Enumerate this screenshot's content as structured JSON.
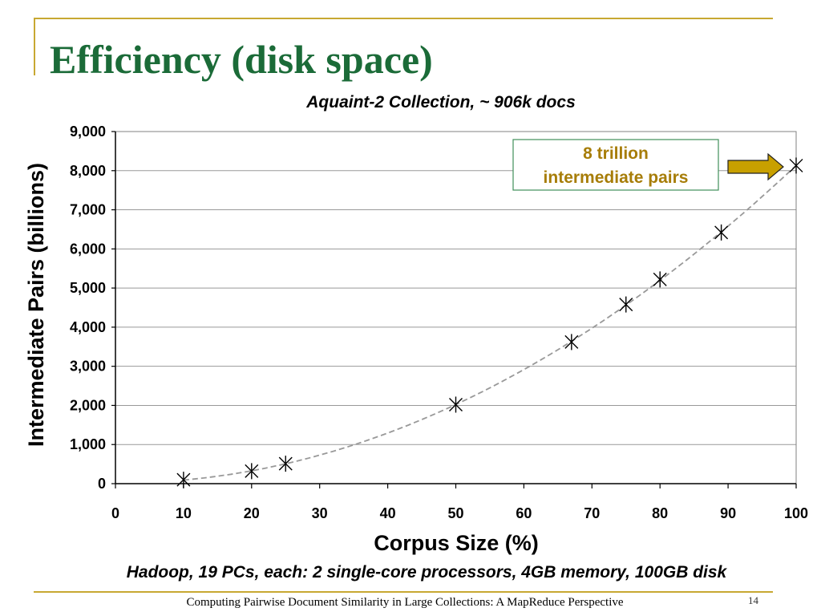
{
  "slide": {
    "title": "Efficiency (disk space)",
    "footer": "Computing Pairwise Document Similarity in Large Collections: A MapReduce Perspective",
    "page_number": "14",
    "colors": {
      "title": "#1b6b38",
      "rule": "#c8a832",
      "annotation_text": "#a77d08",
      "arrow_fill": "#c8a000",
      "annotation_border": "#3f8f5a",
      "trendline": "#999999",
      "grid": "#999999"
    }
  },
  "chart_data": {
    "type": "scatter",
    "title": "Aquaint-2 Collection, ~ 906k docs",
    "xlabel": "Corpus Size (%)",
    "ylabel": "Intermediate Pairs (billions)",
    "xlim": [
      0,
      100
    ],
    "ylim": [
      0,
      9000
    ],
    "x_ticks": [
      "0",
      "10",
      "20",
      "30",
      "40",
      "50",
      "60",
      "70",
      "80",
      "90",
      "100"
    ],
    "x_tick_values": [
      0,
      10,
      20,
      30,
      40,
      50,
      60,
      70,
      80,
      90,
      100
    ],
    "y_ticks": [
      "0",
      "1,000",
      "2,000",
      "3,000",
      "4,000",
      "5,000",
      "6,000",
      "7,000",
      "8,000",
      "9,000"
    ],
    "y_tick_values": [
      0,
      1000,
      2000,
      3000,
      4000,
      5000,
      6000,
      7000,
      8000,
      9000
    ],
    "grid": "horizontal",
    "marker": "asterisk",
    "series": [
      {
        "x": [
          10,
          20,
          25,
          50,
          67,
          75,
          80,
          89,
          100
        ],
        "y": [
          100,
          320,
          510,
          2020,
          3620,
          4580,
          5220,
          6420,
          8130
        ]
      }
    ],
    "trendline": {
      "style": "dashed",
      "type": "quadratic"
    },
    "annotation": {
      "lines": [
        "8 trillion",
        "intermediate pairs"
      ],
      "points_to": {
        "x": 100,
        "y": 8130
      }
    },
    "caption": "Hadoop, 19 PCs, each: 2 single-core processors, 4GB memory,  100GB disk"
  }
}
